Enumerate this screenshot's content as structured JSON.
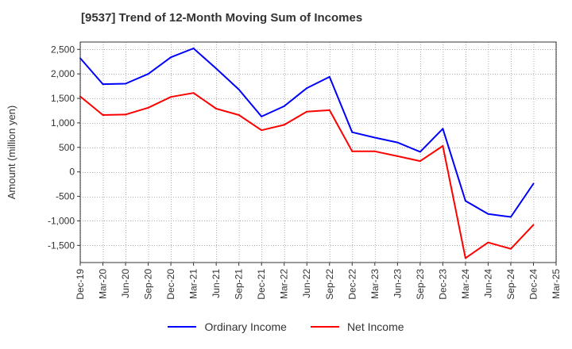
{
  "chart_data": {
    "type": "line",
    "title": "[9537]  Trend of 12-Month Moving Sum of Incomes",
    "xlabel": "",
    "ylabel": "Amount (million yen)",
    "categories": [
      "Dec-19",
      "Mar-20",
      "Jun-20",
      "Sep-20",
      "Dec-20",
      "Mar-21",
      "Jun-21",
      "Sep-21",
      "Dec-21",
      "Mar-22",
      "Jun-22",
      "Sep-22",
      "Dec-22",
      "Mar-23",
      "Jun-23",
      "Sep-23",
      "Dec-23",
      "Mar-24",
      "Jun-24",
      "Sep-24",
      "Dec-24",
      "Mar-25"
    ],
    "yticks": [
      -1500,
      -1000,
      -500,
      0,
      500,
      1000,
      1500,
      2000,
      2500
    ],
    "ytick_labels": [
      "-1,500",
      "-1,000",
      "-500",
      "0",
      "500",
      "1,000",
      "1,500",
      "2,000",
      "2,500"
    ],
    "ylim": [
      -1850,
      2650
    ],
    "grid": true,
    "legend_position": "bottom",
    "series": [
      {
        "name": "Ordinary Income",
        "color": "#0000ff",
        "values": [
          2320,
          1790,
          1800,
          2000,
          2340,
          2520,
          2110,
          1680,
          1130,
          1340,
          1710,
          1940,
          810,
          700,
          600,
          410,
          880,
          -590,
          -860,
          -920,
          -240,
          null
        ]
      },
      {
        "name": "Net Income",
        "color": "#ff0000",
        "values": [
          1540,
          1160,
          1170,
          1310,
          1530,
          1610,
          1290,
          1160,
          850,
          960,
          1230,
          1260,
          420,
          420,
          320,
          220,
          530,
          -1760,
          -1440,
          -1570,
          -1080,
          null
        ]
      }
    ]
  }
}
